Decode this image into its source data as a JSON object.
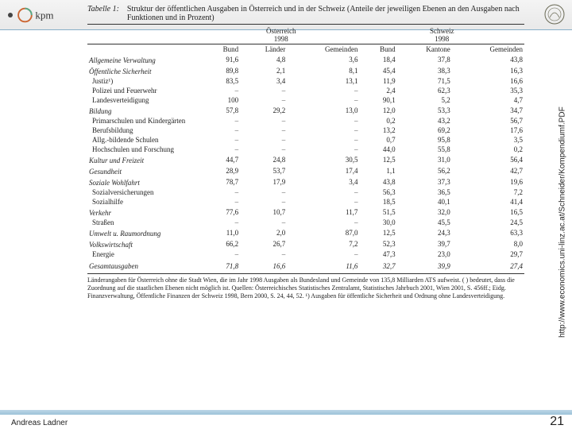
{
  "header": {
    "logo_text": "kpm",
    "seal_color": "#6a6a55"
  },
  "table": {
    "number": "Tabelle 1:",
    "caption": "Struktur der öffentlichen Ausgaben in Österreich und in der Schweiz (Anteile der jeweiligen Ebenen an den Ausgaben nach Funktionen und in Prozent)",
    "group_a": "Österreich",
    "group_b": "Schweiz",
    "year": "1998",
    "cols_a": [
      "Bund",
      "Länder",
      "Gemeinden"
    ],
    "cols_b": [
      "Bund",
      "Kantone",
      "Gemeinden"
    ],
    "rows": [
      {
        "type": "section",
        "label": "Allgemeine Verwaltung",
        "v": [
          "91,6",
          "4,8",
          "3,6",
          "18,4",
          "37,8",
          "43,8"
        ]
      },
      {
        "type": "section",
        "label": "Öffentliche Sicherheit",
        "v": [
          "89,8",
          "2,1",
          "8,1",
          "45,4",
          "38,3",
          "16,3"
        ]
      },
      {
        "type": "sub",
        "label": "Justiz¹)",
        "v": [
          "83,5",
          "3,4",
          "13,1",
          "11,9",
          "71,5",
          "16,6"
        ]
      },
      {
        "type": "sub",
        "label": "Polizei und Feuerwehr",
        "v": [
          "–",
          "–",
          "–",
          "2,4",
          "62,3",
          "35,3"
        ]
      },
      {
        "type": "sub",
        "label": "Landesverteidigung",
        "v": [
          "100",
          "–",
          "–",
          "90,1",
          "5,2",
          "4,7"
        ]
      },
      {
        "type": "section",
        "label": "Bildung",
        "v": [
          "57,8",
          "29,2",
          "13,0",
          "12,0",
          "53,3",
          "34,7"
        ]
      },
      {
        "type": "sub",
        "label": "Primarschulen und Kindergärten",
        "v": [
          "–",
          "–",
          "–",
          "0,2",
          "43,2",
          "56,7"
        ]
      },
      {
        "type": "sub",
        "label": "Berufsbildung",
        "v": [
          "–",
          "–",
          "–",
          "13,2",
          "69,2",
          "17,6"
        ]
      },
      {
        "type": "sub",
        "label": "Allg.-bildende Schulen",
        "v": [
          "–",
          "–",
          "–",
          "0,7",
          "95,8",
          "3,5"
        ]
      },
      {
        "type": "sub",
        "label": "Hochschulen und Forschung",
        "v": [
          "–",
          "–",
          "–",
          "44,0",
          "55,8",
          "0,2"
        ]
      },
      {
        "type": "section",
        "label": "Kultur und Freizeit",
        "v": [
          "44,7",
          "24,8",
          "30,5",
          "12,5",
          "31,0",
          "56,4"
        ]
      },
      {
        "type": "section",
        "label": "Gesundheit",
        "v": [
          "28,9",
          "53,7",
          "17,4",
          "1,1",
          "56,2",
          "42,7"
        ]
      },
      {
        "type": "section",
        "label": "Soziale Wohlfahrt",
        "v": [
          "78,7",
          "17,9",
          "3,4",
          "43,8",
          "37,3",
          "19,6"
        ]
      },
      {
        "type": "sub",
        "label": "Sozialversicherungen",
        "v": [
          "–",
          "–",
          "–",
          "56,3",
          "36,5",
          "7,2"
        ]
      },
      {
        "type": "sub",
        "label": "Sozialhilfe",
        "v": [
          "–",
          "–",
          "–",
          "18,5",
          "40,1",
          "41,4"
        ]
      },
      {
        "type": "section",
        "label": "Verkehr",
        "v": [
          "77,6",
          "10,7",
          "11,7",
          "51,5",
          "32,0",
          "16,5"
        ]
      },
      {
        "type": "sub",
        "label": "Straßen",
        "v": [
          "–",
          "–",
          "–",
          "30,0",
          "45,5",
          "24,5"
        ]
      },
      {
        "type": "section",
        "label": "Umwelt u. Raumordnung",
        "v": [
          "11,0",
          "2,0",
          "87,0",
          "12,5",
          "24,3",
          "63,3"
        ]
      },
      {
        "type": "section",
        "label": "Volkswirtschaft",
        "v": [
          "66,2",
          "26,7",
          "7,2",
          "52,3",
          "39,7",
          "8,0"
        ]
      },
      {
        "type": "sub",
        "label": "Energie",
        "v": [
          "–",
          "–",
          "–",
          "47,3",
          "23,0",
          "29,7"
        ]
      },
      {
        "type": "total",
        "label": "Gesamtausgaben",
        "v": [
          "71,8",
          "16,6",
          "11,6",
          "32,7",
          "39,9",
          "27,4"
        ]
      }
    ],
    "footnote": "Länderangaben für Österreich ohne die Stadt Wien, die im Jahr 1998 Ausgaben als Bundesland und Gemeinde von 135,8 Milliarden ATS aufweist. ( ) bedeutet, dass die Zuordnung auf die staatlichen Ebenen nicht möglich ist. Quellen: Österreichisches Statistisches Zentralamt, Statistisches Jahrbuch 2001, Wien 2001, S. 456ff.; Eidg. Finanzverwaltung, Öffentliche Finanzen der Schweiz 1998, Bern 2000, S. 24, 44, 52.\n¹) Ausgaben für öffentliche Sicherheit und Ordnung ohne Landesverteidigung."
  },
  "side_url": "http://www.economics.uni-linz.ac.at/Schneider/Kompendiumf.PDF",
  "footer": {
    "author": "Andreas Ladner",
    "page": "21"
  }
}
